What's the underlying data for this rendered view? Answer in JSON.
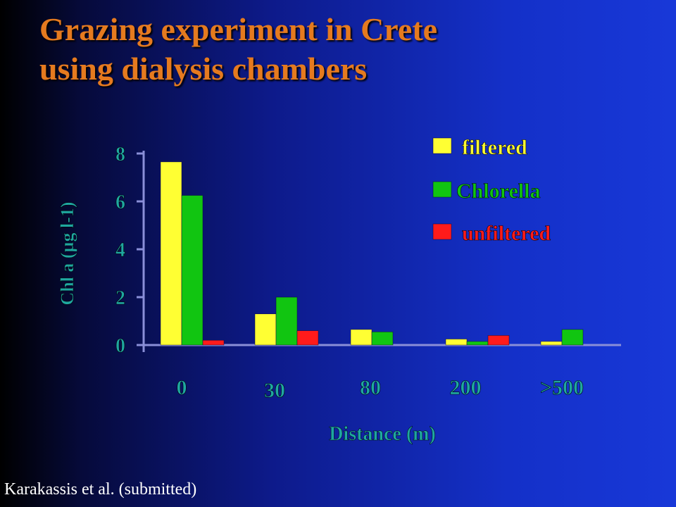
{
  "slide": {
    "title_line1": "Grazing experiment in Crete",
    "title_line2": "using dialysis chambers",
    "footer": "Karakassis et al. (submitted)"
  },
  "colors": {
    "title": "#e57a1f",
    "axis_text": "#1fa7a0",
    "filtered": "#ffff33",
    "chlorella": "#11c511",
    "unfiltered": "#ff1b1b"
  },
  "chart_data": {
    "type": "bar",
    "xlabel": "Distance (m)",
    "ylabel": "Chl a (µg l-1)",
    "ylim": [
      0,
      8
    ],
    "yticks": [
      "0",
      "2",
      "4",
      "6",
      "8"
    ],
    "categories": [
      "0",
      "30",
      "80",
      "200",
      ">500"
    ],
    "series": [
      {
        "name": "filtered",
        "values": [
          7.65,
          1.3,
          0.65,
          0.25,
          0.15
        ]
      },
      {
        "name": "Chlorella",
        "values": [
          6.25,
          2.0,
          0.55,
          0.15,
          0.65
        ]
      },
      {
        "name": "unfiltered",
        "values": [
          0.2,
          0.6,
          0,
          0.4,
          0
        ]
      }
    ],
    "legend_position": "top-right",
    "grid": false
  }
}
